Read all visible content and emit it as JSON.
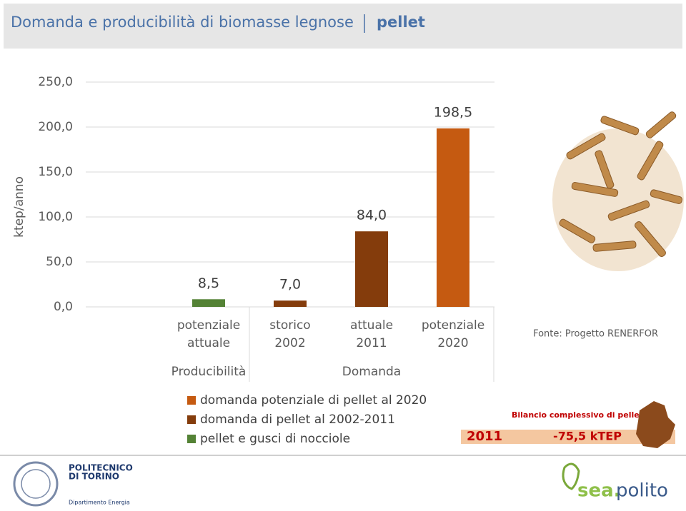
{
  "header": {
    "title": "Domanda e producibilità di biomasse legnose",
    "highlight": "pellet"
  },
  "chart_data": {
    "type": "bar",
    "y_label": "ktep/anno",
    "categories": [
      "potenziale attuale",
      "storico 2002",
      "attuale 2011",
      "potenziale 2020"
    ],
    "groups": [
      {
        "label": "Producibilità",
        "span": [
          0,
          0
        ]
      },
      {
        "label": "Domanda",
        "span": [
          1,
          3
        ]
      }
    ],
    "series": [
      {
        "name": "domanda potenziale di pellet al 2020",
        "color": "#c55a11",
        "values": [
          null,
          null,
          null,
          198.5
        ],
        "value_labels": [
          null,
          null,
          null,
          "198,5"
        ]
      },
      {
        "name": "domanda di pellet al 2002-2011",
        "color": "#843c0c",
        "values": [
          null,
          7.0,
          84.0,
          null
        ],
        "value_labels": [
          null,
          "7,0",
          "84,0",
          null
        ]
      },
      {
        "name": "pellet e gusci di nocciole",
        "color": "#548235",
        "values": [
          8.5,
          null,
          null,
          null
        ],
        "value_labels": [
          "8,5",
          null,
          null,
          null
        ]
      }
    ],
    "ylim": [
      0,
      250
    ],
    "yticks": [
      {
        "value": 0,
        "label": "0,0"
      },
      {
        "value": 50,
        "label": "50,0"
      },
      {
        "value": 100,
        "label": "100,0"
      },
      {
        "value": 150,
        "label": "150,0"
      },
      {
        "value": 200,
        "label": "200,0"
      },
      {
        "value": 250,
        "label": "250,0"
      }
    ],
    "grid": true
  },
  "source": "Fonte: Progetto RENERFOR",
  "balance": {
    "title": "Bilancio complessivo di pellet",
    "year": "2011",
    "value": "-75,5 kTEP"
  },
  "footer": {
    "university": [
      "POLITECNICO",
      "DI TORINO"
    ],
    "department": "Dipartimento Energia",
    "brand": [
      "sea.",
      "polito"
    ]
  }
}
